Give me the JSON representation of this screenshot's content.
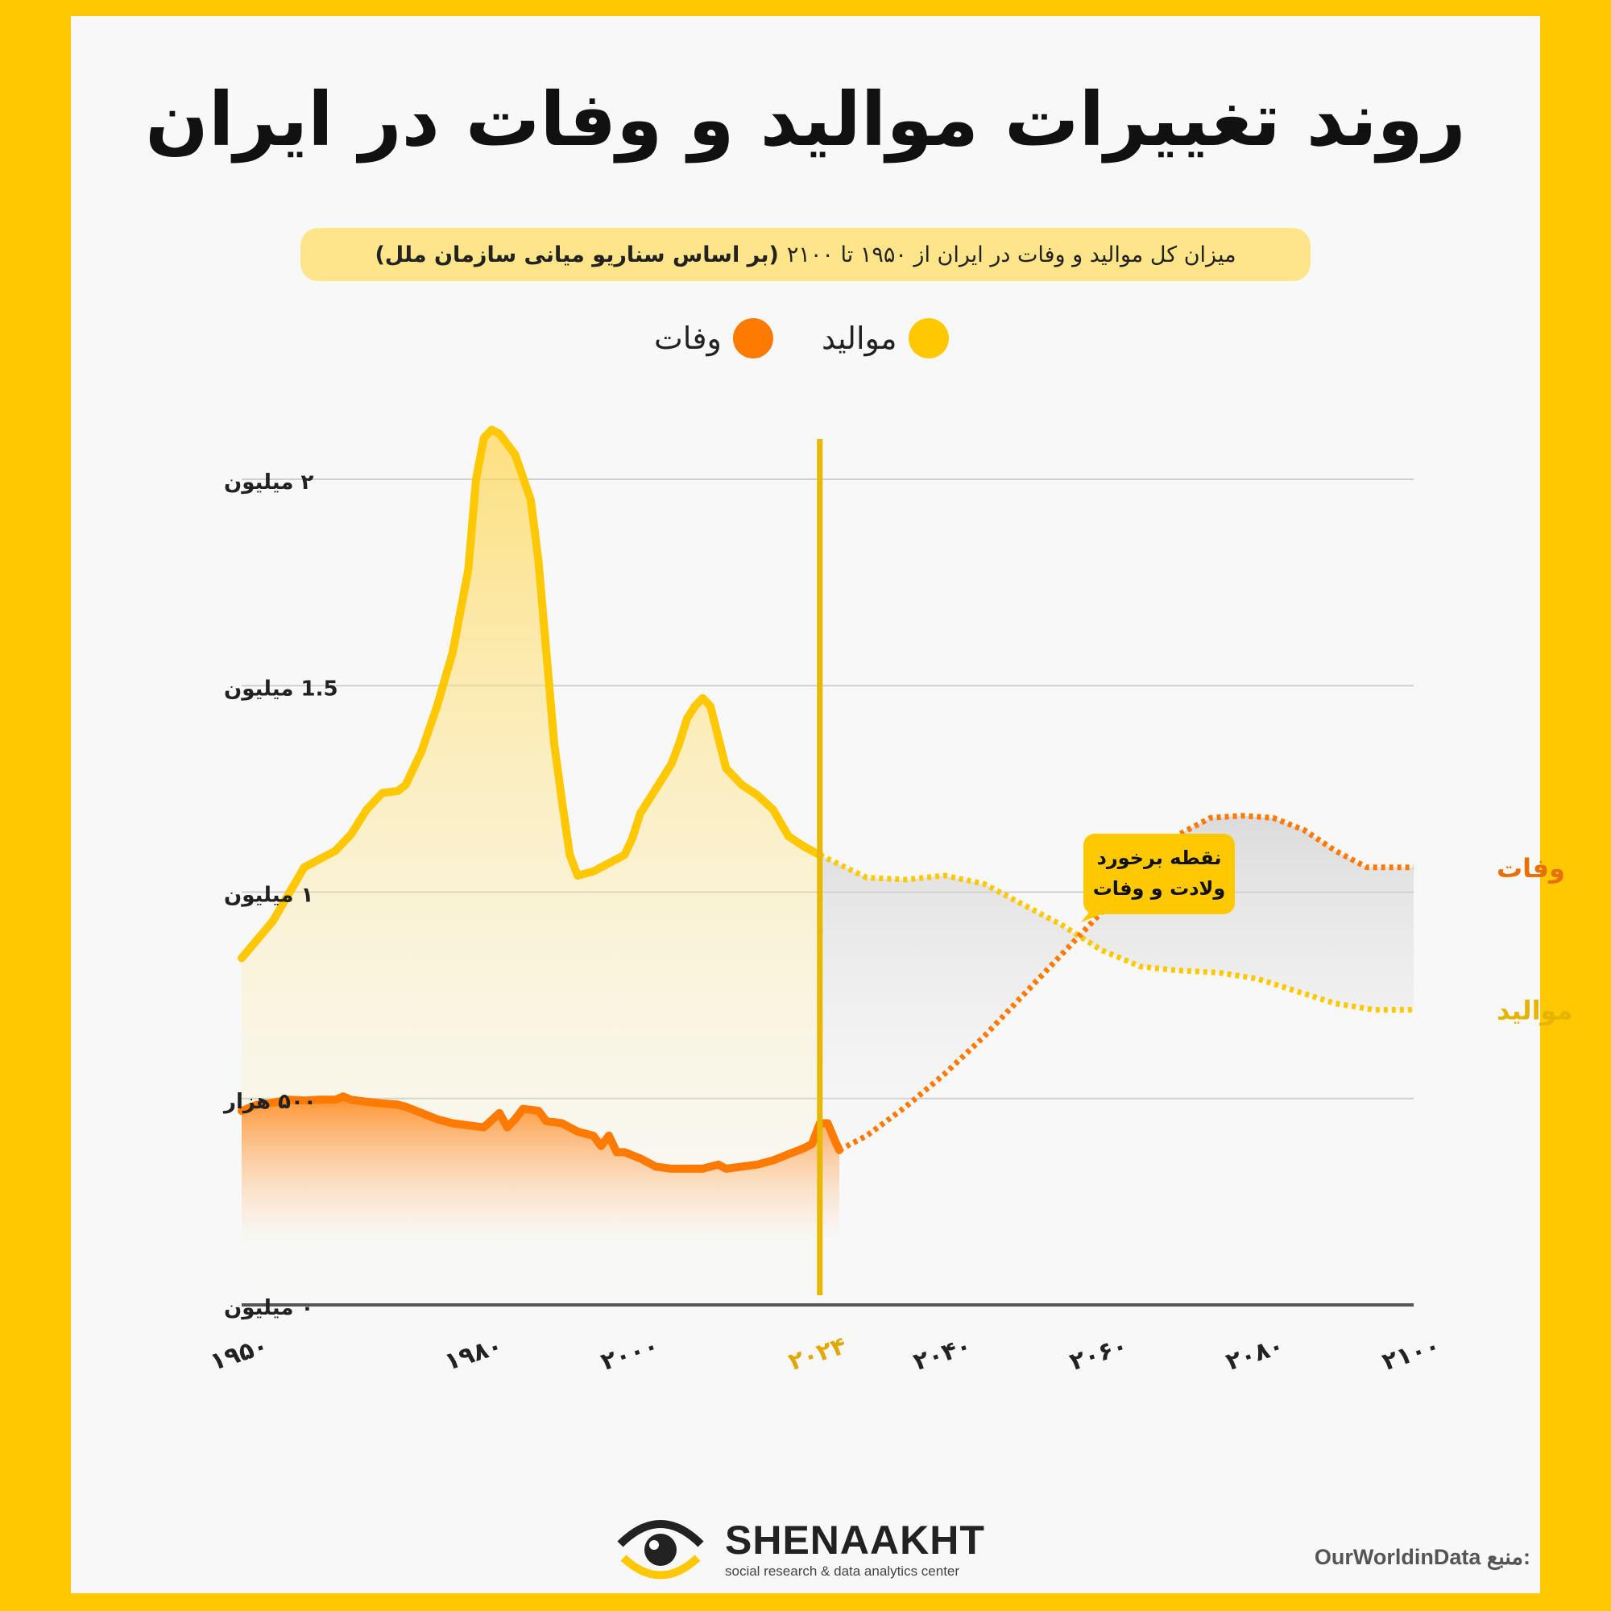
{
  "title": "روند تغییرات موالید و وفات در ایران",
  "subtitle": {
    "text": "میزان کل موالید و وفات در ایران از ۱۹۵۰ تا ۲۱۰۰",
    "bold": "(بر اساس سناریو میانی سازمان ملل)"
  },
  "legend": [
    {
      "label": "موالید",
      "color": "#ffc800"
    },
    {
      "label": "وفات",
      "color": "#ff7a00"
    }
  ],
  "colors": {
    "births": "#ffc800",
    "deaths": "#ff7a00",
    "projection_divider": "#e8b800",
    "annotation": "#ffc800"
  },
  "chart_data": {
    "type": "line",
    "x_label": "",
    "y_label": "",
    "ylim": [
      0,
      2200000
    ],
    "xlim": [
      1950,
      2100
    ],
    "y_ticks": [
      {
        "value": 0,
        "label": "۰ میلیون"
      },
      {
        "value": 500000,
        "label": "۵۰۰ هزار"
      },
      {
        "value": 1000000,
        "label": "۱ میلیون"
      },
      {
        "value": 1500000,
        "label": "1.5 میلیون"
      },
      {
        "value": 2000000,
        "label": "۲ میلیون"
      }
    ],
    "x_ticks": [
      {
        "value": 1950,
        "label": "۱۹۵۰"
      },
      {
        "value": 1980,
        "label": "۱۹۸۰"
      },
      {
        "value": 2000,
        "label": "۲۰۰۰"
      },
      {
        "value": 2024,
        "label": "۲۰۲۴",
        "highlight": true
      },
      {
        "value": 2040,
        "label": "۲۰۴۰"
      },
      {
        "value": 2060,
        "label": "۲۰۶۰"
      },
      {
        "value": 2080,
        "label": "۲۰۸۰"
      },
      {
        "value": 2100,
        "label": "۲۱۰۰"
      }
    ],
    "projection_start": 2024,
    "series": [
      {
        "name": "موالید",
        "end_label": "موالید",
        "historical": [
          [
            1950,
            840000
          ],
          [
            1954,
            930000
          ],
          [
            1958,
            1060000
          ],
          [
            1962,
            1100000
          ],
          [
            1964,
            1140000
          ],
          [
            1966,
            1200000
          ],
          [
            1968,
            1240000
          ],
          [
            1970,
            1245000
          ],
          [
            1971,
            1260000
          ],
          [
            1973,
            1340000
          ],
          [
            1975,
            1450000
          ],
          [
            1977,
            1580000
          ],
          [
            1979,
            1780000
          ],
          [
            1980,
            2000000
          ],
          [
            1981,
            2100000
          ],
          [
            1982,
            2120000
          ],
          [
            1983,
            2110000
          ],
          [
            1985,
            2060000
          ],
          [
            1987,
            1950000
          ],
          [
            1988,
            1800000
          ],
          [
            1989,
            1580000
          ],
          [
            1990,
            1360000
          ],
          [
            1991,
            1220000
          ],
          [
            1992,
            1090000
          ],
          [
            1993,
            1040000
          ],
          [
            1995,
            1050000
          ],
          [
            1997,
            1070000
          ],
          [
            1999,
            1090000
          ],
          [
            2000,
            1130000
          ],
          [
            2001,
            1190000
          ],
          [
            2003,
            1250000
          ],
          [
            2005,
            1310000
          ],
          [
            2006,
            1360000
          ],
          [
            2007,
            1420000
          ],
          [
            2008,
            1450000
          ],
          [
            2009,
            1470000
          ],
          [
            2010,
            1450000
          ],
          [
            2012,
            1300000
          ],
          [
            2014,
            1260000
          ],
          [
            2016,
            1235000
          ],
          [
            2018,
            1200000
          ],
          [
            2020,
            1135000
          ],
          [
            2022,
            1110000
          ],
          [
            2024,
            1090000
          ]
        ],
        "projection": [
          [
            2024,
            1090000
          ],
          [
            2030,
            1035000
          ],
          [
            2035,
            1030000
          ],
          [
            2040,
            1040000
          ],
          [
            2045,
            1020000
          ],
          [
            2050,
            970000
          ],
          [
            2055,
            920000
          ],
          [
            2060,
            860000
          ],
          [
            2065,
            820000
          ],
          [
            2070,
            810000
          ],
          [
            2075,
            805000
          ],
          [
            2080,
            790000
          ],
          [
            2085,
            760000
          ],
          [
            2090,
            730000
          ],
          [
            2095,
            715000
          ],
          [
            2100,
            715000
          ]
        ]
      },
      {
        "name": "وفات",
        "end_label": "وفات",
        "historical": [
          [
            1950,
            470000
          ],
          [
            1952,
            485000
          ],
          [
            1954,
            490000
          ],
          [
            1956,
            497000
          ],
          [
            1958,
            495000
          ],
          [
            1960,
            497000
          ],
          [
            1962,
            497000
          ],
          [
            1963,
            505000
          ],
          [
            1964,
            497000
          ],
          [
            1966,
            492000
          ],
          [
            1968,
            488000
          ],
          [
            1970,
            485000
          ],
          [
            1971,
            480000
          ],
          [
            1973,
            465000
          ],
          [
            1975,
            450000
          ],
          [
            1977,
            440000
          ],
          [
            1979,
            435000
          ],
          [
            1981,
            430000
          ],
          [
            1983,
            465000
          ],
          [
            1984,
            430000
          ],
          [
            1985,
            450000
          ],
          [
            1986,
            475000
          ],
          [
            1988,
            470000
          ],
          [
            1989,
            445000
          ],
          [
            1991,
            440000
          ],
          [
            1993,
            420000
          ],
          [
            1995,
            410000
          ],
          [
            1996,
            385000
          ],
          [
            1997,
            410000
          ],
          [
            1998,
            370000
          ],
          [
            1999,
            370000
          ],
          [
            2001,
            355000
          ],
          [
            2003,
            335000
          ],
          [
            2005,
            330000
          ],
          [
            2007,
            330000
          ],
          [
            2009,
            330000
          ],
          [
            2010,
            335000
          ],
          [
            2011,
            340000
          ],
          [
            2012,
            330000
          ],
          [
            2014,
            335000
          ],
          [
            2016,
            340000
          ],
          [
            2018,
            350000
          ],
          [
            2020,
            365000
          ],
          [
            2022,
            380000
          ],
          [
            2023,
            390000
          ],
          [
            2024,
            440000
          ],
          [
            2025,
            440000
          ],
          [
            2026,
            395000
          ],
          [
            2026.5,
            375000
          ]
        ],
        "projection": [
          [
            2026.5,
            375000
          ],
          [
            2030,
            410000
          ],
          [
            2035,
            480000
          ],
          [
            2040,
            560000
          ],
          [
            2045,
            650000
          ],
          [
            2050,
            750000
          ],
          [
            2055,
            850000
          ],
          [
            2060,
            950000
          ],
          [
            2065,
            1050000
          ],
          [
            2070,
            1140000
          ],
          [
            2074,
            1180000
          ],
          [
            2078,
            1185000
          ],
          [
            2082,
            1180000
          ],
          [
            2086,
            1150000
          ],
          [
            2090,
            1100000
          ],
          [
            2094,
            1060000
          ],
          [
            2097,
            1060000
          ],
          [
            2100,
            1060000
          ]
        ]
      }
    ],
    "annotation": {
      "line1": "نقطه برخورد",
      "line2": "ولادت و وفات"
    }
  },
  "brand": {
    "name": "SHENAAKHT",
    "tagline": "social research & data analytics center"
  },
  "source": {
    "label": "منبع:",
    "value": "OurWorldinData"
  }
}
